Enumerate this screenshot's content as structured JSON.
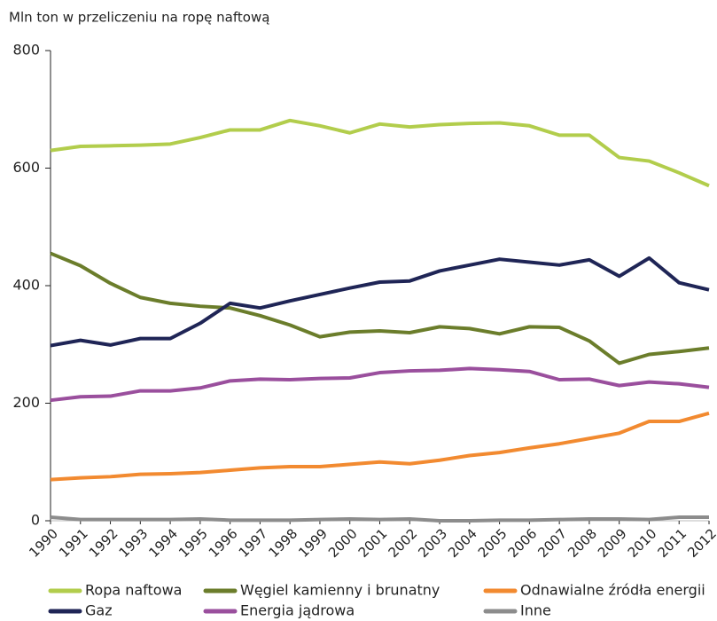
{
  "chart_data": {
    "type": "line",
    "ylabel": "Mln ton w przeliczeniu na ropę naftową",
    "x": [
      1990,
      1991,
      1992,
      1993,
      1994,
      1995,
      1996,
      1997,
      1998,
      1999,
      2000,
      2001,
      2002,
      2003,
      2004,
      2005,
      2006,
      2007,
      2008,
      2009,
      2010,
      2011,
      2012
    ],
    "xlim": [
      1990,
      2012
    ],
    "ylim": [
      0,
      800
    ],
    "yticks": [
      0,
      200,
      400,
      600,
      800
    ],
    "grid": false,
    "series": [
      {
        "name": "Ropa naftowa",
        "color": "#b2cd4c",
        "values": [
          630,
          637,
          638,
          639,
          641,
          652,
          665,
          665,
          681,
          672,
          660,
          675,
          670,
          674,
          676,
          677,
          672,
          656,
          656,
          618,
          612,
          592,
          570
        ]
      },
      {
        "name": "Węgiel kamienny i brunatny",
        "color": "#6b7d2b",
        "values": [
          455,
          434,
          404,
          380,
          370,
          365,
          362,
          349,
          333,
          313,
          321,
          323,
          320,
          330,
          327,
          318,
          330,
          329,
          306,
          268,
          283,
          288,
          294
        ]
      },
      {
        "name": "Odnawialne źródła energii",
        "color": "#f28a30",
        "values": [
          70,
          73,
          75,
          79,
          80,
          82,
          86,
          90,
          92,
          92,
          96,
          100,
          97,
          103,
          111,
          116,
          124,
          131,
          140,
          149,
          169,
          169,
          183
        ]
      },
      {
        "name": "Gaz",
        "color": "#1f2556",
        "values": [
          298,
          307,
          299,
          310,
          310,
          336,
          370,
          362,
          374,
          385,
          396,
          406,
          408,
          425,
          435,
          445,
          440,
          435,
          444,
          416,
          447,
          405,
          393
        ]
      },
      {
        "name": "Energia jądrowa",
        "color": "#9a4f9d",
        "values": [
          205,
          211,
          212,
          221,
          221,
          226,
          238,
          241,
          240,
          242,
          243,
          252,
          255,
          256,
          259,
          257,
          254,
          240,
          241,
          230,
          236,
          233,
          227
        ]
      },
      {
        "name": "Inne",
        "color": "#8c8c8c",
        "values": [
          6,
          2,
          2,
          2,
          2,
          3,
          1,
          1,
          1,
          2,
          3,
          2,
          3,
          0,
          0,
          1,
          1,
          2,
          3,
          3,
          2,
          6,
          6
        ]
      }
    ]
  }
}
